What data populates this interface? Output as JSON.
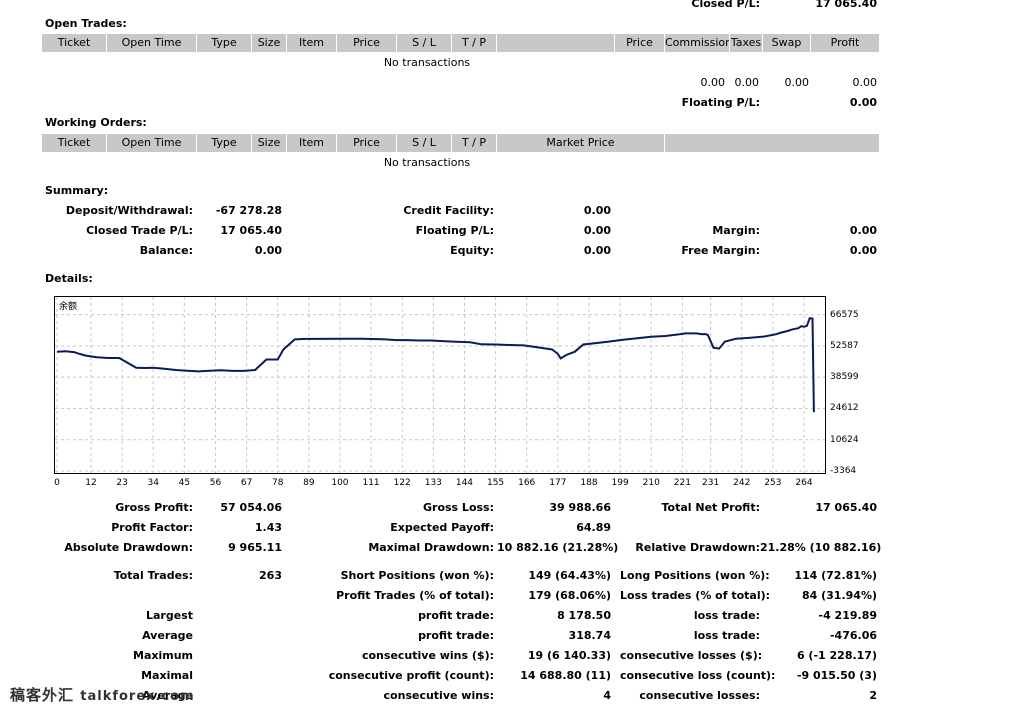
{
  "top": {
    "closed_pl_label": "Closed P/L:",
    "closed_pl_value": "17 065.40"
  },
  "open_trades": {
    "title": "Open Trades:",
    "headers": [
      "Ticket",
      "Open Time",
      "Type",
      "Size",
      "Item",
      "Price",
      "S / L",
      "T / P",
      "",
      "Price",
      "Commission",
      "Taxes",
      "Swap",
      "Profit"
    ],
    "empty": "No transactions",
    "totals": {
      "commission": "0.00",
      "taxes": "0.00",
      "swap": "0.00",
      "profit": "0.00"
    },
    "floating_label": "Floating P/L:",
    "floating_value": "0.00"
  },
  "working_orders": {
    "title": "Working Orders:",
    "headers": [
      "Ticket",
      "Open Time",
      "Type",
      "Size",
      "Item",
      "Price",
      "S / L",
      "T / P",
      "Market Price",
      ""
    ],
    "empty": "No transactions"
  },
  "summary": {
    "title": "Summary:",
    "deposit_label": "Deposit/Withdrawal:",
    "deposit_value": "-67 278.28",
    "credit_label": "Credit Facility:",
    "credit_value": "0.00",
    "closed_label": "Closed Trade P/L:",
    "closed_value": "17 065.40",
    "floating_label": "Floating P/L:",
    "floating_value": "0.00",
    "margin_label": "Margin:",
    "margin_value": "0.00",
    "balance_label": "Balance:",
    "balance_value": "0.00",
    "equity_label": "Equity:",
    "equity_value": "0.00",
    "free_margin_label": "Free Margin:",
    "free_margin_value": "0.00"
  },
  "details": {
    "title": "Details:"
  },
  "chart_data": {
    "type": "line",
    "series_label": "余额",
    "xticks": [
      "0",
      "12",
      "23",
      "34",
      "45",
      "56",
      "67",
      "78",
      "89",
      "100",
      "111",
      "122",
      "133",
      "144",
      "155",
      "166",
      "177",
      "188",
      "199",
      "210",
      "221",
      "231",
      "242",
      "253",
      "264"
    ],
    "yticks": [
      "66575",
      "52587",
      "38599",
      "24612",
      "10624",
      "-3364"
    ],
    "ylim": [
      -3364,
      73569
    ],
    "xlim": [
      0,
      270
    ],
    "line_color": "#0a1a5c",
    "x": [
      0,
      3,
      6,
      8,
      10,
      14,
      18,
      22,
      28,
      31,
      34,
      38,
      42,
      46,
      50,
      54,
      58,
      62,
      66,
      70,
      74,
      78,
      80,
      84,
      85,
      88,
      92,
      100,
      108,
      116,
      120,
      124,
      128,
      132,
      140,
      146,
      150,
      155,
      160,
      165,
      170,
      175,
      177,
      178,
      180,
      183,
      186,
      190,
      195,
      200,
      205,
      210,
      215,
      220,
      222,
      226,
      228,
      229,
      230,
      232,
      234,
      236,
      240,
      245,
      250,
      254,
      256,
      258,
      260,
      262,
      263,
      264,
      265,
      266,
      267,
      267.5
    ],
    "y": [
      50000,
      50200,
      49800,
      49000,
      48300,
      47500,
      47200,
      47200,
      42800,
      42700,
      42800,
      42400,
      41800,
      41500,
      41200,
      41500,
      41700,
      41400,
      41400,
      41800,
      46500,
      46500,
      51000,
      55500,
      55600,
      55700,
      55700,
      55800,
      55800,
      55500,
      55200,
      55200,
      55000,
      55000,
      54500,
      54200,
      53300,
      53200,
      53000,
      52800,
      51900,
      51000,
      49000,
      47000,
      48500,
      50000,
      53200,
      53800,
      54500,
      55300,
      56000,
      56700,
      57000,
      57800,
      58200,
      58200,
      57800,
      57900,
      57500,
      51800,
      51400,
      54500,
      55800,
      56200,
      56800,
      57800,
      58600,
      59200,
      60000,
      60500,
      61400,
      61200,
      61600,
      65000,
      64800,
      23000
    ]
  },
  "stats": {
    "gross_profit_label": "Gross Profit:",
    "gross_profit_value": "57 054.06",
    "gross_loss_label": "Gross Loss:",
    "gross_loss_value": "39 988.66",
    "total_net_label": "Total Net Profit:",
    "total_net_value": "17 065.40",
    "profit_factor_label": "Profit Factor:",
    "profit_factor_value": "1.43",
    "expected_payoff_label": "Expected Payoff:",
    "expected_payoff_value": "64.89",
    "abs_dd_label": "Absolute Drawdown:",
    "abs_dd_value": "9 965.11",
    "max_dd_label": "Maximal Drawdown:",
    "max_dd_value": "10 882.16 (21.28%)",
    "rel_dd_label": "Relative Drawdown:",
    "rel_dd_value": "21.28% (10 882.16)",
    "total_trades_label": "Total Trades:",
    "total_trades_value": "263",
    "short_label": "Short Positions (won %):",
    "short_value": "149 (64.43%)",
    "long_label": "Long Positions (won %):",
    "long_value": "114 (72.81%)",
    "profit_trades_label": "Profit Trades (% of total):",
    "profit_trades_value": "179 (68.06%)",
    "loss_trades_label": "Loss trades (% of total):",
    "loss_trades_value": "84 (31.94%)",
    "largest_label": "Largest",
    "largest_profit_label": "profit trade:",
    "largest_profit_value": "8 178.50",
    "largest_loss_label": "loss trade:",
    "largest_loss_value": "-4 219.89",
    "average_label": "Average",
    "average_profit_label": "profit trade:",
    "average_profit_value": "318.74",
    "average_loss_label": "loss trade:",
    "average_loss_value": "-476.06",
    "maximum_label": "Maximum",
    "max_wins_label": "consecutive wins ($):",
    "max_wins_value": "19 (6 140.33)",
    "max_losses_label": "consecutive losses ($):",
    "max_losses_value": "6 (-1 228.17)",
    "maximal_label": "Maximal",
    "maximal_profit_label": "consecutive profit (count):",
    "maximal_profit_value": "14 688.80 (11)",
    "maximal_loss_label": "consecutive loss (count):",
    "maximal_loss_value": "-9 015.50 (3)",
    "average2_label": "Average",
    "avg_wins_label": "consecutive wins:",
    "avg_wins_value": "4",
    "avg_losses_label": "consecutive losses:",
    "avg_losses_value": "2"
  },
  "watermark": {
    "cn": "稿客外汇",
    "en": "talkforex.com"
  }
}
